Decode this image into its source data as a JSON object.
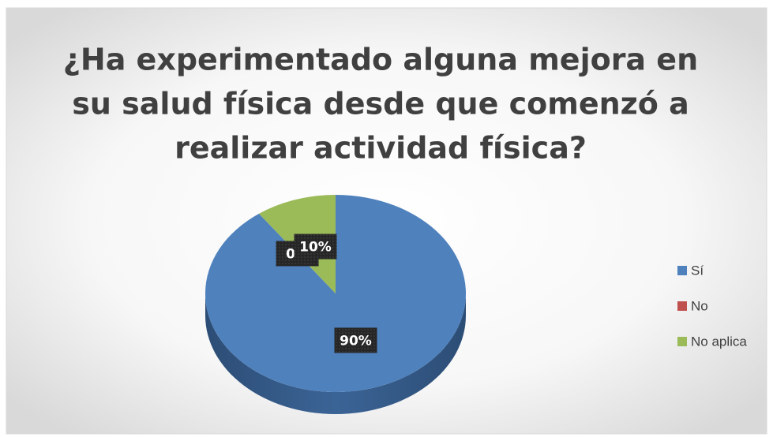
{
  "chart_data": {
    "type": "pie",
    "title_lines": [
      "¿Ha experimentado alguna mejora en",
      "su salud física desde que comenzó a",
      "realizar actividad física?"
    ],
    "categories": [
      "Sí",
      "No",
      "No aplica"
    ],
    "values": [
      90,
      0,
      10
    ],
    "value_labels": [
      "90%",
      "0%",
      "10%"
    ],
    "colors": [
      "#4f81bd",
      "#c0504d",
      "#9bbb59"
    ],
    "legend": "right"
  }
}
